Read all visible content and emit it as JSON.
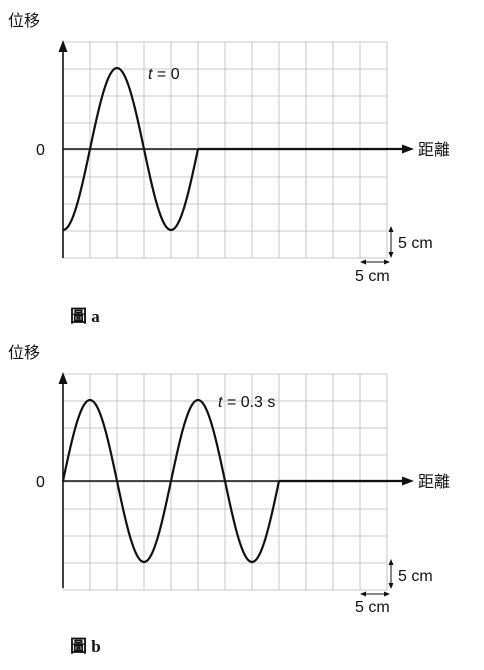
{
  "figures": [
    {
      "ylabel": "位移",
      "xlabel": "距離",
      "zero_label": "0",
      "time_prefix": "t",
      "time_suffix": " = 0",
      "scale_y": "5 cm",
      "scale_x": "5 cm",
      "caption": "圖 a"
    },
    {
      "ylabel": "位移",
      "xlabel": "距離",
      "zero_label": "0",
      "time_prefix": "t",
      "time_suffix": " = 0.3 s",
      "scale_y": "5 cm",
      "scale_x": "5 cm",
      "caption": "圖 b"
    }
  ],
  "chart_data": [
    {
      "type": "line",
      "title": "圖 a",
      "xlabel": "距離",
      "ylabel": "位移",
      "annotation": "t = 0",
      "grid": true,
      "grid_unit_x": "5 cm",
      "grid_unit_y": "5 cm",
      "series": [
        {
          "x": [
            0,
            5,
            10,
            15,
            20,
            25,
            30,
            35,
            40,
            45,
            50,
            55,
            60
          ],
          "y": [
            -15,
            0,
            15,
            0,
            -15,
            0,
            0,
            0,
            0,
            0,
            0,
            0,
            0
          ]
        }
      ]
    },
    {
      "type": "line",
      "title": "圖 b",
      "xlabel": "距離",
      "ylabel": "位移",
      "annotation": "t = 0.3 s",
      "grid": true,
      "grid_unit_x": "5 cm",
      "grid_unit_y": "5 cm",
      "series": [
        {
          "x": [
            0,
            5,
            10,
            15,
            20,
            25,
            30,
            35,
            40,
            45,
            50,
            55,
            60
          ],
          "y": [
            0,
            15,
            0,
            -15,
            0,
            15,
            0,
            -15,
            0,
            0,
            0,
            0,
            0
          ]
        }
      ]
    }
  ]
}
